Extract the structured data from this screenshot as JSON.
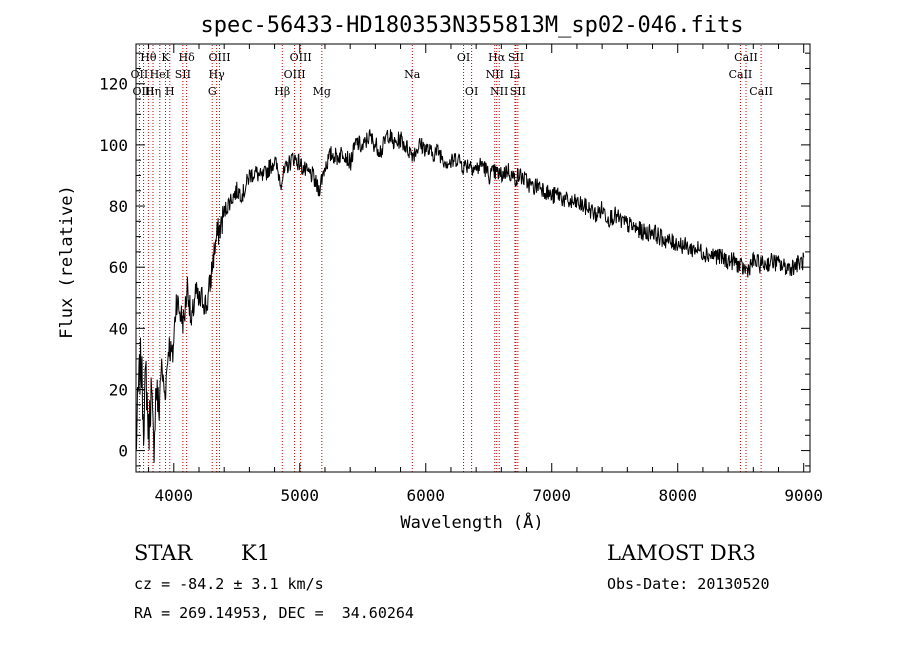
{
  "chart_data": {
    "type": "line",
    "title": "spec-56433-HD180353N355813M_sp02-046.fits",
    "xlabel": "Wavelength (Å)",
    "ylabel": "Flux (relative)",
    "xlim": [
      3700,
      9050
    ],
    "ylim": [
      -7,
      133
    ],
    "x_ticks": [
      4000,
      5000,
      6000,
      7000,
      8000,
      9000
    ],
    "y_ticks": [
      0,
      20,
      40,
      60,
      80,
      100,
      120
    ],
    "x_tick_labels": [
      "4000",
      "5000",
      "6000",
      "7000",
      "8000",
      "9000"
    ],
    "y_tick_labels": [
      "0",
      "20",
      "40",
      "60",
      "80",
      "100",
      "120"
    ],
    "grid": false,
    "line_color": "#000000",
    "marker_color": "#cc0000",
    "series": [
      {
        "x": [
          3700,
          3720,
          3740,
          3760,
          3780,
          3800,
          3820,
          3840,
          3860,
          3880,
          3900,
          3930,
          3960,
          3990,
          4020,
          4050,
          4080,
          4110,
          4140,
          4170,
          4200,
          4230,
          4260,
          4290,
          4310,
          4340,
          4370,
          4400,
          4450,
          4500,
          4550,
          4600,
          4650,
          4700,
          4750,
          4800,
          4850,
          4900,
          4950,
          5000,
          5050,
          5100,
          5150,
          5200,
          5250,
          5300,
          5350,
          5400,
          5450,
          5500,
          5550,
          5600,
          5650,
          5700,
          5750,
          5800,
          5850,
          5900,
          5950,
          6000,
          6050,
          6100,
          6150,
          6200,
          6250,
          6300,
          6350,
          6400,
          6450,
          6500,
          6550,
          6600,
          6650,
          6700,
          6750,
          6800,
          6850,
          6900,
          6950,
          7000,
          7050,
          7100,
          7150,
          7200,
          7250,
          7300,
          7350,
          7400,
          7450,
          7500,
          7550,
          7600,
          7650,
          7700,
          7750,
          7800,
          7850,
          7900,
          7950,
          8000,
          8050,
          8100,
          8150,
          8200,
          8250,
          8300,
          8350,
          8400,
          8450,
          8500,
          8550,
          8600,
          8650,
          8700,
          8750,
          8800,
          8850,
          8900,
          8950,
          9000
        ],
        "y": [
          0,
          20,
          30,
          10,
          25,
          5,
          20,
          0,
          22,
          12,
          28,
          18,
          35,
          30,
          50,
          45,
          42,
          55,
          40,
          52,
          48,
          50,
          47,
          55,
          62,
          70,
          73,
          78,
          82,
          85,
          84,
          90,
          91,
          89,
          92,
          95,
          88,
          93,
          96,
          94,
          91,
          90,
          85,
          93,
          97,
          96,
          98,
          94,
          101,
          99,
          103,
          100,
          98,
          104,
          100,
          102,
          99,
          97,
          100,
          99,
          97,
          98,
          95,
          94,
          96,
          93,
          94,
          92,
          94,
          90,
          91,
          90,
          92,
          89,
          90,
          88,
          86,
          87,
          85,
          83,
          84,
          82,
          81,
          81,
          80,
          79,
          77,
          79,
          76,
          77,
          75,
          74,
          73,
          72,
          71,
          72,
          70,
          69,
          68,
          68,
          67,
          66,
          66,
          65,
          64,
          64,
          63,
          62,
          62,
          60,
          59,
          62,
          61,
          61,
          62,
          61,
          60,
          60,
          61,
          62
        ]
      }
    ],
    "line_markers": [
      {
        "label": "Hθ",
        "x": 3798,
        "row": 0
      },
      {
        "label": "K",
        "x": 3934,
        "row": 0
      },
      {
        "label": "Hδ",
        "x": 4102,
        "row": 0
      },
      {
        "label": "OIII",
        "x": 4363,
        "row": 0
      },
      {
        "label": "OIII",
        "x": 5007,
        "row": 0
      },
      {
        "label": "OI",
        "x": 6300,
        "row": 0
      },
      {
        "label": "Hα",
        "x": 6563,
        "row": 0
      },
      {
        "label": "SII",
        "x": 6716,
        "row": 0
      },
      {
        "label": "CaII",
        "x": 8542,
        "row": 0
      },
      {
        "label": "OII",
        "x": 3727,
        "row": 1
      },
      {
        "label": "HeI",
        "x": 3889,
        "row": 1
      },
      {
        "label": "SII",
        "x": 4072,
        "row": 1
      },
      {
        "label": "Hγ",
        "x": 4340,
        "row": 1
      },
      {
        "label": "OIII",
        "x": 4959,
        "row": 1
      },
      {
        "label": "Na",
        "x": 5893,
        "row": 1
      },
      {
        "label": "NII",
        "x": 6548,
        "row": 1
      },
      {
        "label": "Li",
        "x": 6708,
        "row": 1
      },
      {
        "label": "CaII",
        "x": 8498,
        "row": 1
      },
      {
        "label": "OIII",
        "x": 3760,
        "row": 2
      },
      {
        "label": "Hη",
        "x": 3835,
        "row": 2
      },
      {
        "label": "H",
        "x": 3968,
        "row": 2
      },
      {
        "label": "G",
        "x": 4305,
        "row": 2
      },
      {
        "label": "Hβ",
        "x": 4861,
        "row": 2
      },
      {
        "label": "Mg",
        "x": 5175,
        "row": 2
      },
      {
        "label": "OI",
        "x": 6364,
        "row": 2
      },
      {
        "label": "NII",
        "x": 6583,
        "row": 2
      },
      {
        "label": "SII",
        "x": 6731,
        "row": 2
      },
      {
        "label": "CaII",
        "x": 8662,
        "row": 2
      }
    ]
  },
  "info": {
    "object_type": "STAR",
    "subclass": "K1",
    "survey": "LAMOST DR3",
    "redshift": "cz = -84.2 ± 3.1 km/s",
    "obs_date": "Obs-Date: 20130520",
    "coords": "RA = 269.14953, DEC =  34.60264"
  }
}
